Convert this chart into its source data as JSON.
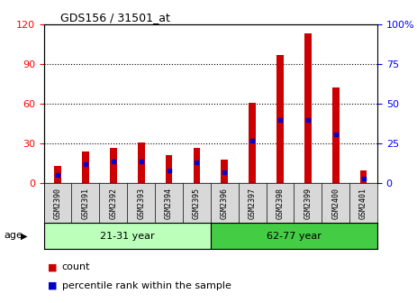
{
  "title": "GDS156 / 31501_at",
  "samples": [
    "GSM2390",
    "GSM2391",
    "GSM2392",
    "GSM2393",
    "GSM2394",
    "GSM2395",
    "GSM2396",
    "GSM2397",
    "GSM2398",
    "GSM2399",
    "GSM2400",
    "GSM2401"
  ],
  "counts": [
    13,
    24,
    27,
    31,
    21,
    27,
    18,
    61,
    97,
    113,
    72,
    10
  ],
  "percentiles": [
    5,
    12,
    14,
    14,
    8,
    13,
    7,
    27,
    40,
    40,
    31,
    3
  ],
  "groups": [
    {
      "label": "21-31 year",
      "start": 0,
      "end": 6
    },
    {
      "label": "62-77 year",
      "start": 6,
      "end": 12
    }
  ],
  "bar_color": "#cc0000",
  "percentile_color": "#0000cc",
  "group_color_1": "#bbffbb",
  "group_color_2": "#44cc44",
  "left_ylim": [
    0,
    120
  ],
  "right_ylim": [
    0,
    100
  ],
  "left_yticks": [
    0,
    30,
    60,
    90,
    120
  ],
  "right_yticks": [
    0,
    25,
    50,
    75,
    100
  ],
  "right_yticklabels": [
    "0",
    "25",
    "50",
    "75",
    "100%"
  ],
  "xlabel_age": "age",
  "legend_count": "count",
  "legend_percentile": "percentile rank within the sample",
  "bar_width": 0.25
}
